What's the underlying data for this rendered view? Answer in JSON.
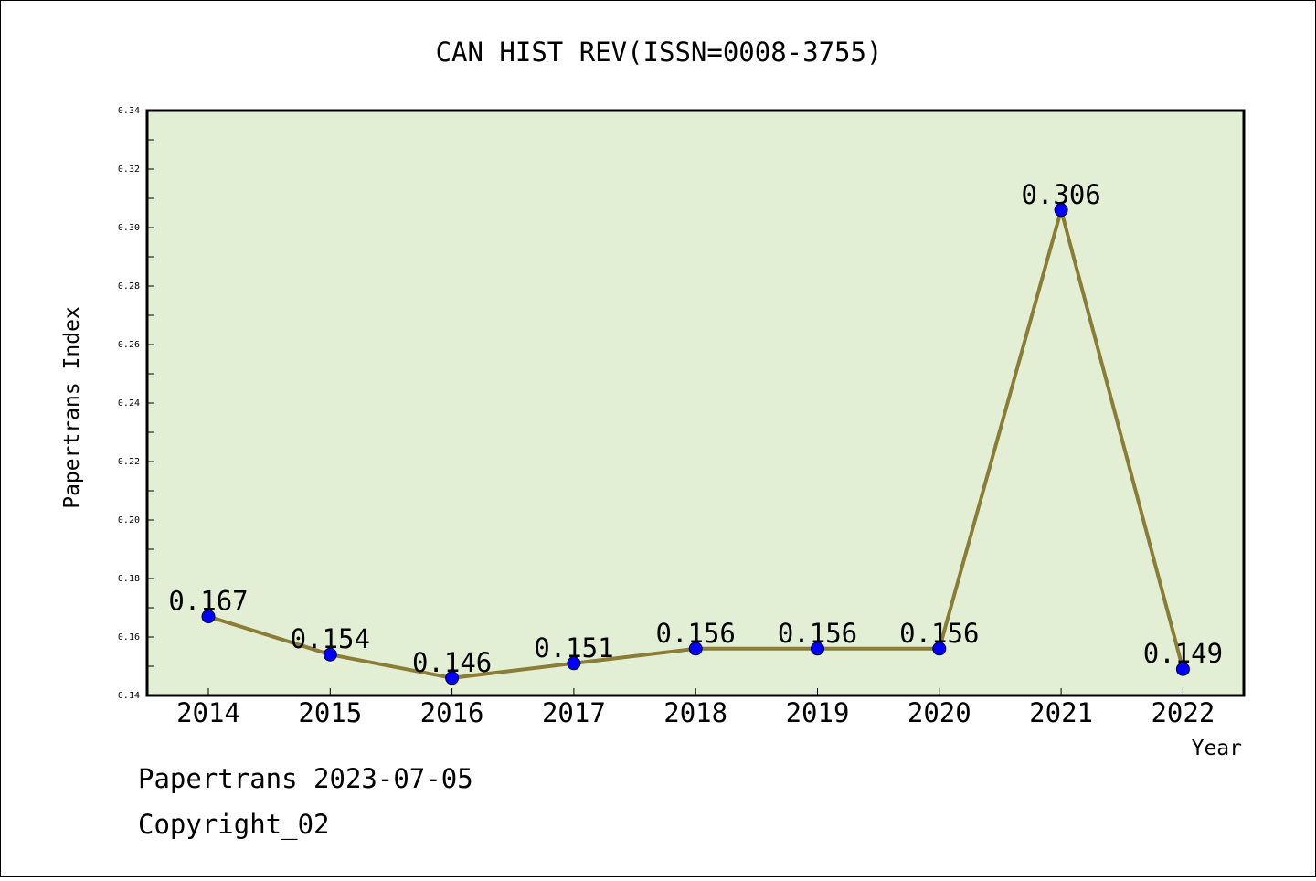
{
  "chart_data": {
    "type": "line",
    "title": "CAN HIST REV(ISSN=0008-3755)",
    "xlabel": "Year",
    "ylabel": "Papertrans Index",
    "categories": [
      "2014",
      "2015",
      "2016",
      "2017",
      "2018",
      "2019",
      "2020",
      "2021",
      "2022"
    ],
    "series": [
      {
        "values": [
          0.167,
          0.154,
          0.146,
          0.151,
          0.156,
          0.156,
          0.156,
          0.306,
          0.149
        ]
      }
    ],
    "data_labels": [
      "0.167",
      "0.154",
      "0.146",
      "0.151",
      "0.156",
      "0.156",
      "0.156",
      "0.306",
      "0.149"
    ],
    "ylim": [
      0.14,
      0.34
    ],
    "yticks": [
      "0.14",
      "0.16",
      "0.18",
      "0.20",
      "0.22",
      "0.24",
      "0.26",
      "0.28",
      "0.30",
      "0.32",
      "0.34"
    ],
    "grid": false,
    "legend": "none",
    "colors": {
      "plot_background": "#e2efd5",
      "line": "#8b7d35",
      "marker": "#0000ff"
    }
  },
  "footer": {
    "line1": "Papertrans 2023-07-05",
    "line2": "Copyright_02"
  }
}
